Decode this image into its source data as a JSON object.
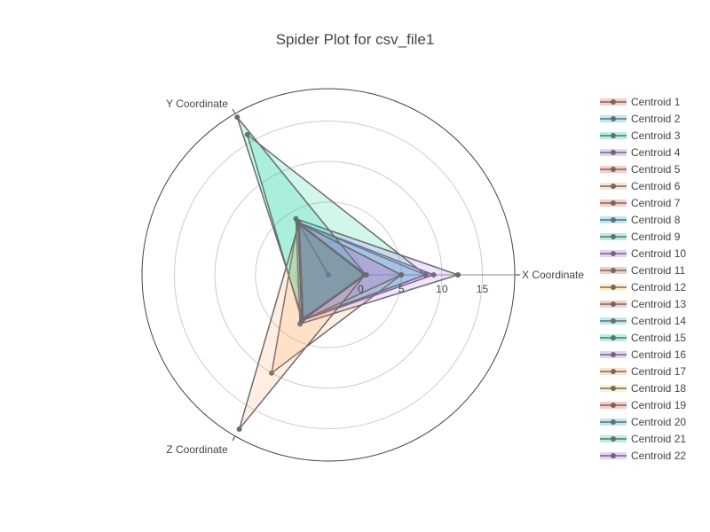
{
  "chart_data": {
    "type": "radar",
    "title": "Spider Plot for csv_file1",
    "axes": [
      "X Coordinate",
      "Y Coordinate",
      "Z Coordinate"
    ],
    "radial_ticks": [
      "0",
      "5",
      "10",
      "15"
    ],
    "radial_range": [
      -4,
      19
    ],
    "legend_position": "right",
    "series": [
      {
        "name": "Centroid 1",
        "color": "#ef553b",
        "values": [
          0.5,
          3.5,
          2.5
        ]
      },
      {
        "name": "Centroid 2",
        "color": "#19b3d8",
        "values": [
          0.3,
          3.3,
          2.3
        ]
      },
      {
        "name": "Centroid 3",
        "color": "#00cc96",
        "values": [
          8.0,
          3.5,
          2.3
        ]
      },
      {
        "name": "Centroid 4",
        "color": "#ab63fa",
        "values": [
          9.0,
          3.5,
          2.5
        ]
      },
      {
        "name": "Centroid 5",
        "color": "#ef553b",
        "values": [
          0.5,
          3.3,
          2.2
        ]
      },
      {
        "name": "Centroid 6",
        "color": "#ffa15a",
        "values": [
          5.0,
          3.5,
          10.0
        ]
      },
      {
        "name": "Centroid 7",
        "color": "#ef553b",
        "values": [
          0.7,
          3.4,
          2.4
        ]
      },
      {
        "name": "Centroid 8",
        "color": "#19b3d8",
        "values": [
          0.4,
          3.2,
          2.2
        ]
      },
      {
        "name": "Centroid 9",
        "color": "#00cc96",
        "values": [
          8.0,
          16.0,
          2.5
        ]
      },
      {
        "name": "Centroid 10",
        "color": "#ab63fa",
        "values": [
          12.0,
          4.0,
          3.0
        ]
      },
      {
        "name": "Centroid 11",
        "color": "#ef553b",
        "values": [
          0.6,
          3.5,
          2.6
        ]
      },
      {
        "name": "Centroid 12",
        "color": "#fecb52",
        "values": [
          0.5,
          3.3,
          2.3
        ]
      },
      {
        "name": "Centroid 13",
        "color": "#ef553b",
        "values": [
          0.4,
          3.4,
          2.4
        ]
      },
      {
        "name": "Centroid 14",
        "color": "#19b3d8",
        "values": [
          0.5,
          3.3,
          2.2
        ]
      },
      {
        "name": "Centroid 15",
        "color": "#00cc96",
        "values": [
          0.6,
          18.5,
          2.3
        ]
      },
      {
        "name": "Centroid 16",
        "color": "#ab63fa",
        "values": [
          5.0,
          3.5,
          2.5
        ]
      },
      {
        "name": "Centroid 17",
        "color": "#ffa15a",
        "values": [
          0.5,
          3.3,
          18.0
        ]
      },
      {
        "name": "Centroid 18",
        "color": "#fecb52",
        "values": [
          0.5,
          3.4,
          2.4
        ]
      },
      {
        "name": "Centroid 19",
        "color": "#ef553b",
        "values": [
          -4.0,
          3.3,
          -4.0
        ]
      },
      {
        "name": "Centroid 20",
        "color": "#19b3d8",
        "values": [
          0.4,
          3.5,
          2.3
        ]
      },
      {
        "name": "Centroid 21",
        "color": "#00cc96",
        "values": [
          0.5,
          3.2,
          2.2
        ]
      },
      {
        "name": "Centroid 22",
        "color": "#ab63fa",
        "values": [
          0.5,
          3.4,
          2.6
        ]
      }
    ]
  }
}
